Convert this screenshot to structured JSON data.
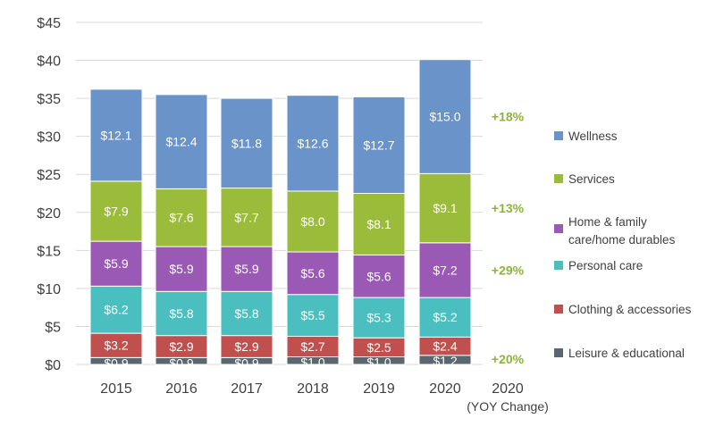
{
  "chart_data": {
    "type": "bar",
    "stacked": true,
    "categories": [
      "2015",
      "2016",
      "2017",
      "2018",
      "2019",
      "2020"
    ],
    "ylim": [
      0,
      45
    ],
    "y_ticks": [
      "$0",
      "$5",
      "$10",
      "$15",
      "$20",
      "$25",
      "$30",
      "$35",
      "$40",
      "$45"
    ],
    "grid": true,
    "legend_position": "right",
    "series": [
      {
        "name": "Leisure & educational",
        "color": "#5B6770",
        "values": [
          0.9,
          0.9,
          0.9,
          1.0,
          1.0,
          1.2
        ],
        "labels": [
          "$0.9",
          "$0.9",
          "$0.9",
          "$1.0",
          "$1.0",
          "$1.2"
        ]
      },
      {
        "name": "Clothing & accessories",
        "color": "#C0504D",
        "values": [
          3.2,
          2.9,
          2.9,
          2.7,
          2.5,
          2.4
        ],
        "labels": [
          "$3.2",
          "$2.9",
          "$2.9",
          "$2.7",
          "$2.5",
          "$2.4"
        ]
      },
      {
        "name": "Personal care",
        "color": "#4BBFBF",
        "values": [
          6.2,
          5.8,
          5.8,
          5.5,
          5.3,
          5.2
        ],
        "labels": [
          "$6.2",
          "$5.8",
          "$5.8",
          "$5.5",
          "$5.3",
          "$5.2"
        ]
      },
      {
        "name": "Home & family care/home durables",
        "legend_lines": [
          "Home & family",
          "care/home durables"
        ],
        "color": "#9B59B6",
        "values": [
          5.9,
          5.9,
          5.9,
          5.6,
          5.6,
          7.2
        ],
        "labels": [
          "$5.9",
          "$5.9",
          "$5.9",
          "$5.6",
          "$5.6",
          "$7.2"
        ]
      },
      {
        "name": "Services",
        "color": "#9BBB3A",
        "values": [
          7.9,
          7.6,
          7.7,
          8.0,
          8.1,
          9.1
        ],
        "labels": [
          "$7.9",
          "$7.6",
          "$7.7",
          "$8.0",
          "$8.1",
          "$9.1"
        ]
      },
      {
        "name": "Wellness",
        "color": "#6A93C9",
        "values": [
          12.1,
          12.4,
          11.8,
          12.6,
          12.7,
          15.0
        ],
        "labels": [
          "$12.1",
          "$12.4",
          "$11.8",
          "$12.6",
          "$12.7",
          "$15.0"
        ]
      }
    ],
    "yoy": {
      "header_lines": [
        "2020",
        "(YOY Change)"
      ],
      "color": "#8DB33A",
      "items": [
        {
          "series": "Wellness",
          "label": "+18%"
        },
        {
          "series": "Services",
          "label": "+13%"
        },
        {
          "series": "Home & family care/home durables",
          "label": "+29%"
        },
        {
          "series": "Leisure & educational",
          "label": "+20%"
        }
      ]
    }
  }
}
